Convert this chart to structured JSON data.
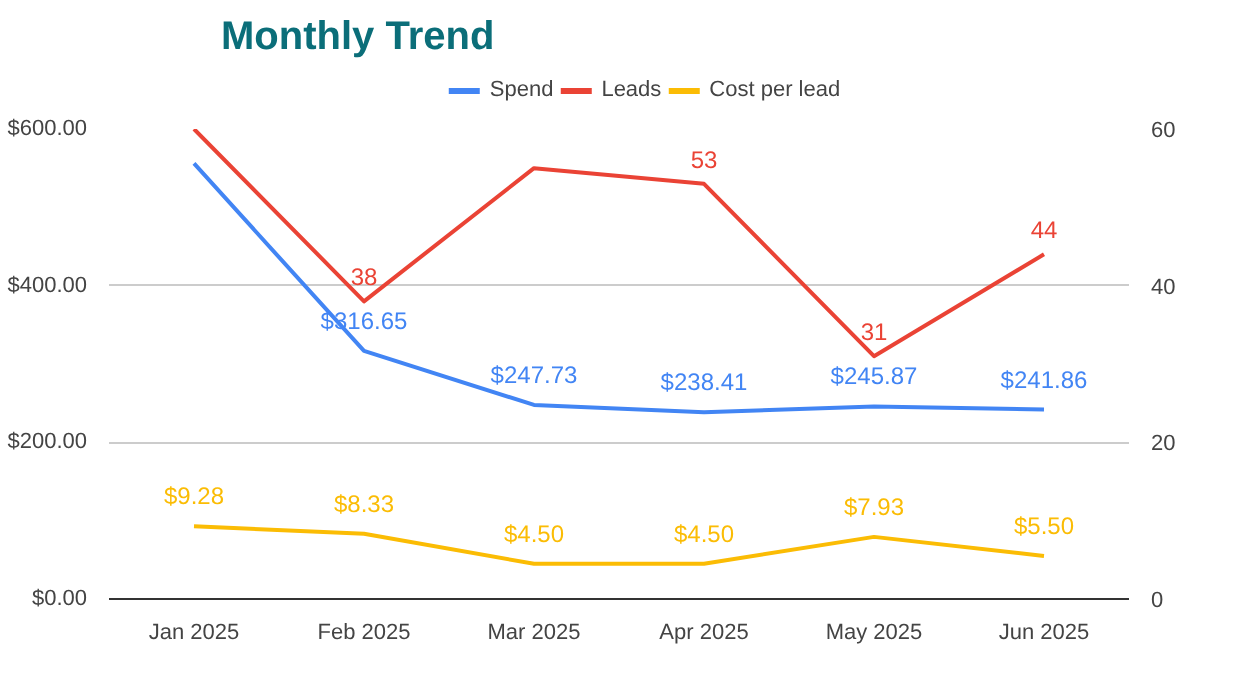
{
  "chart_data": {
    "type": "line",
    "title": "Monthly Trend",
    "categories": [
      "Jan 2025",
      "Feb 2025",
      "Mar 2025",
      "Apr 2025",
      "May 2025",
      "Jun 2025"
    ],
    "series": [
      {
        "name": "Spend",
        "color": "#4285f4",
        "values": [
          556,
          316.65,
          247.73,
          238.41,
          245.87,
          241.86
        ],
        "value_labels": [
          null,
          "$316.65",
          "$247.73",
          "$238.41",
          "$245.87",
          "$241.86"
        ]
      },
      {
        "name": "Leads",
        "color": "#ea4335",
        "axis": "y2",
        "values": [
          60,
          38,
          55,
          53,
          31,
          44
        ],
        "value_labels": [
          null,
          "38",
          null,
          "53",
          "31",
          "44"
        ]
      },
      {
        "name": "Cost per lead",
        "color": "#fbbc04",
        "axis": "y2",
        "values": [
          9.28,
          8.33,
          4.5,
          4.5,
          7.93,
          5.5
        ],
        "value_labels": [
          "$9.28",
          "$8.33",
          "$4.50",
          "$4.50",
          "$7.93",
          "$5.50"
        ]
      }
    ],
    "ylim": [
      0,
      600
    ],
    "yticks": [
      {
        "value": 0,
        "label": "$0.00"
      },
      {
        "value": 200,
        "label": "$200.00"
      },
      {
        "value": 400,
        "label": "$400.00"
      },
      {
        "value": 600,
        "label": "$600.00"
      }
    ],
    "y2lim": [
      0,
      60
    ],
    "y2ticks": [
      0,
      20,
      40,
      60
    ],
    "grid": "y",
    "legend": "top",
    "marker": "none",
    "line_style": "solid"
  }
}
